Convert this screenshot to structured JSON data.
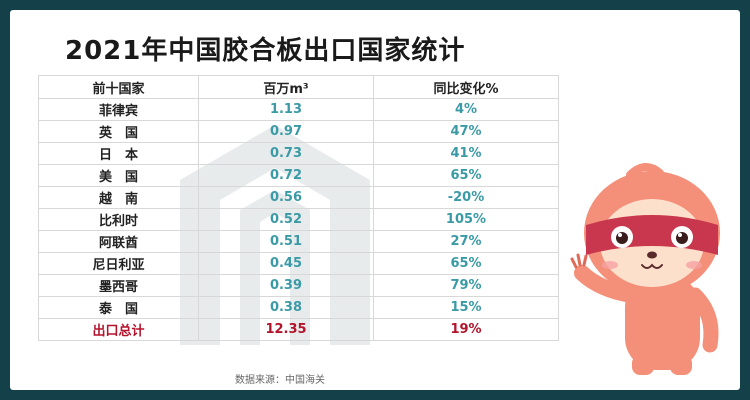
{
  "title": "2021年中国胶合板出口国家统计",
  "chart_data": {
    "type": "table",
    "columns": [
      "前十国家",
      "百万m³",
      "同比变化%"
    ],
    "rows": [
      {
        "country": "菲律宾",
        "volume": "1.13",
        "change": "4%"
      },
      {
        "country": "英　国",
        "volume": "0.97",
        "change": "47%"
      },
      {
        "country": "日　本",
        "volume": "0.73",
        "change": "41%"
      },
      {
        "country": "美　国",
        "volume": "0.72",
        "change": "65%"
      },
      {
        "country": "越　南",
        "volume": "0.56",
        "change": "-20%"
      },
      {
        "country": "比利时",
        "volume": "0.52",
        "change": "105%"
      },
      {
        "country": "阿联酋",
        "volume": "0.51",
        "change": "27%"
      },
      {
        "country": "尼日利亚",
        "volume": "0.45",
        "change": "65%"
      },
      {
        "country": "墨西哥",
        "volume": "0.39",
        "change": "79%"
      },
      {
        "country": "泰　国",
        "volume": "0.38",
        "change": "15%"
      }
    ],
    "total": {
      "country": "出口总计",
      "volume": "12.35",
      "change": "19%"
    }
  },
  "source": "数据来源：中国海关",
  "colors": {
    "background": "#14404a",
    "number_text": "#3a9aa6",
    "total_text": "#b3132b",
    "mascot_body": "#f4907a",
    "mascot_mask": "#c9374e"
  }
}
